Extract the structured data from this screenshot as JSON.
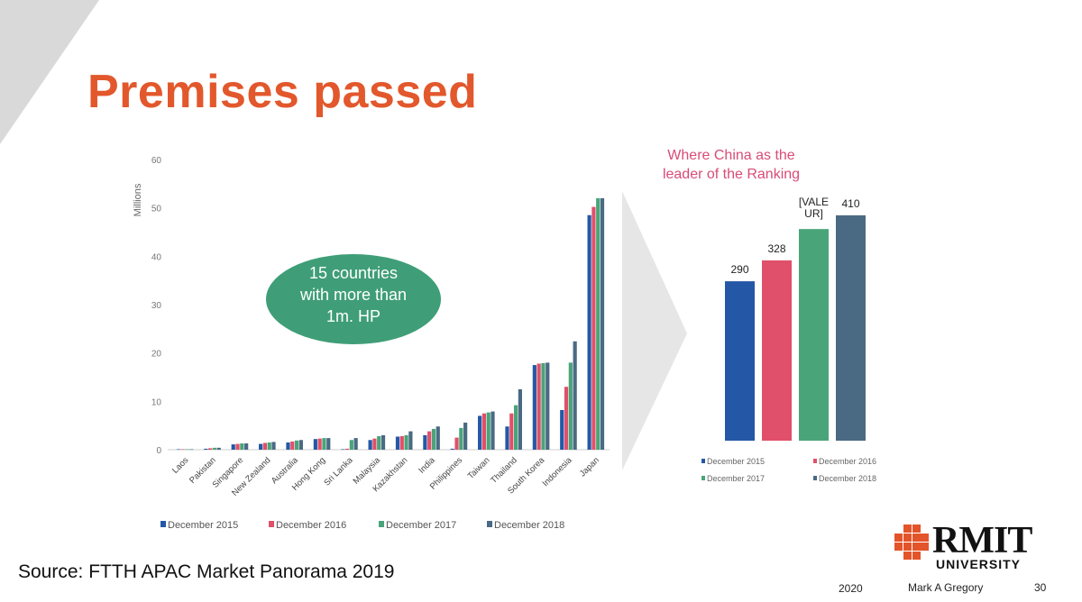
{
  "slide": {
    "title": "Premises passed",
    "source": "Source: FTTH APAC Market Panorama 2019",
    "footer": {
      "year": "2020",
      "author": "Mark A Gregory",
      "page": "30"
    },
    "logo": {
      "word": "RMIT",
      "sub": "UNIVERSITY"
    }
  },
  "callout": {
    "lines": [
      "15 countries",
      "with more than",
      "1m. HP"
    ],
    "color": "#3f9e77"
  },
  "china_note": {
    "lines": [
      "Where China as the",
      "leader of the Ranking"
    ],
    "color": "#d94b78"
  },
  "colors": {
    "December 2015": "#2458a6",
    "December 2016": "#e0506a",
    "December 2017": "#4aa479",
    "December 2018": "#4a6a84",
    "title": "#e2582c",
    "arrow": "#e6e6e6"
  },
  "chart_data": [
    {
      "type": "bar",
      "ylabel": "Millions",
      "ylim": [
        0,
        60
      ],
      "yticks": [
        0,
        10,
        20,
        30,
        40,
        50,
        60
      ],
      "legend": "bottom",
      "categories": [
        "Laos",
        "Pakistan",
        "Singapore",
        "New Zealand",
        "Australia",
        "Hong Kong",
        "Sri Lanka",
        "Malaysia",
        "Kazakhstan",
        "India",
        "Philippines",
        "Taiwan",
        "Thailand",
        "South Korea",
        "Indonesia",
        "Japan"
      ],
      "series": [
        {
          "name": "December 2015",
          "values": [
            0.1,
            0.2,
            1.1,
            1.2,
            1.5,
            2.2,
            0.1,
            2.0,
            2.7,
            3.0,
            0.2,
            7.0,
            4.8,
            17.5,
            8.2,
            48.5
          ]
        },
        {
          "name": "December 2016",
          "values": [
            0.1,
            0.3,
            1.2,
            1.4,
            1.7,
            2.3,
            0.2,
            2.3,
            2.8,
            3.8,
            2.5,
            7.5,
            7.5,
            17.8,
            13.0,
            50.2
          ]
        },
        {
          "name": "December 2017",
          "values": [
            0.1,
            0.4,
            1.3,
            1.5,
            1.9,
            2.4,
            2.0,
            2.8,
            3.0,
            4.3,
            4.5,
            7.7,
            9.2,
            17.9,
            18.0,
            52.0
          ]
        },
        {
          "name": "December 2018",
          "values": [
            0.1,
            0.4,
            1.3,
            1.6,
            2.0,
            2.4,
            2.4,
            3.0,
            3.8,
            4.8,
            5.6,
            7.9,
            12.5,
            18.0,
            22.4,
            52.0
          ]
        }
      ]
    },
    {
      "type": "bar",
      "legend": "bottom",
      "categories": [
        "China"
      ],
      "series": [
        {
          "name": "December 2015",
          "values": [
            290
          ],
          "label": "290"
        },
        {
          "name": "December 2016",
          "values": [
            328
          ],
          "label": "328"
        },
        {
          "name": "December 2017",
          "values": [
            385
          ],
          "label": "[VALE UR]"
        },
        {
          "name": "December 2018",
          "values": [
            410
          ],
          "label": "410"
        }
      ]
    }
  ]
}
